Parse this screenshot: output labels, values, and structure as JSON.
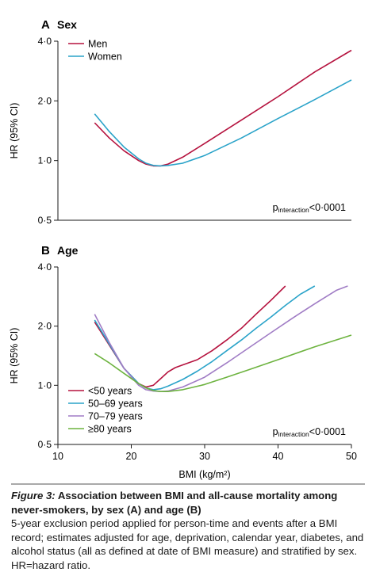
{
  "chart_data": [
    {
      "type": "line",
      "panel_letter": "A",
      "title": "Sex",
      "xlabel": "BMI (kg/m²)",
      "ylabel": "HR (95% CI)",
      "y_scale": "log",
      "ylim": [
        0.5,
        4.0
      ],
      "xlim": [
        10,
        50
      ],
      "y_ticks": [
        "0·5",
        "1·0",
        "2·0",
        "4·0"
      ],
      "y_tick_values": [
        0.5,
        1.0,
        2.0,
        4.0
      ],
      "annotation": {
        "p": "p",
        "sub": "interaction",
        "rest": "<0·0001"
      },
      "legend_position": "top-left",
      "series": [
        {
          "name": "Men",
          "color": "#b5123e",
          "x": [
            15,
            17,
            19,
            21,
            22,
            23,
            24,
            25,
            27,
            30,
            35,
            40,
            45,
            50
          ],
          "y": [
            1.55,
            1.3,
            1.12,
            1.0,
            0.96,
            0.94,
            0.94,
            0.96,
            1.04,
            1.22,
            1.6,
            2.1,
            2.8,
            3.6
          ]
        },
        {
          "name": "Women",
          "color": "#2aa3c9",
          "x": [
            15,
            17,
            19,
            21,
            22,
            23,
            24,
            25,
            27,
            30,
            35,
            40,
            45,
            50
          ],
          "y": [
            1.72,
            1.4,
            1.17,
            1.02,
            0.97,
            0.945,
            0.94,
            0.945,
            0.97,
            1.06,
            1.3,
            1.63,
            2.03,
            2.55
          ]
        }
      ]
    },
    {
      "type": "line",
      "panel_letter": "B",
      "title": "Age",
      "xlabel": "BMI (kg/m²)",
      "ylabel": "HR (95% CI)",
      "y_scale": "log",
      "ylim": [
        0.5,
        4.0
      ],
      "xlim": [
        10,
        50
      ],
      "x_ticks": [
        "10",
        "20",
        "30",
        "40",
        "50"
      ],
      "x_tick_values": [
        10,
        20,
        30,
        40,
        50
      ],
      "y_ticks": [
        "0·5",
        "1·0",
        "2·0",
        "4·0"
      ],
      "y_tick_values": [
        0.5,
        1.0,
        2.0,
        4.0
      ],
      "annotation": {
        "p": "p",
        "sub": "interaction",
        "rest": "<0·0001"
      },
      "legend_position": "bottom-left",
      "series": [
        {
          "name": "<50 years",
          "color": "#b5123e",
          "x": [
            15,
            17,
            19,
            21,
            22,
            23,
            24,
            25,
            26,
            27,
            29,
            31,
            33,
            35,
            37,
            39,
            41
          ],
          "y": [
            2.1,
            1.6,
            1.22,
            1.02,
            0.98,
            1.0,
            1.08,
            1.17,
            1.23,
            1.27,
            1.35,
            1.5,
            1.7,
            1.95,
            2.3,
            2.7,
            3.2
          ]
        },
        {
          "name": "50–69 years",
          "color": "#2aa3c9",
          "x": [
            15,
            17,
            19,
            21,
            22,
            23,
            24,
            25,
            27,
            29,
            31,
            33,
            35,
            37,
            39,
            41,
            43,
            45
          ],
          "y": [
            2.15,
            1.62,
            1.22,
            1.02,
            0.97,
            0.95,
            0.96,
            0.99,
            1.07,
            1.18,
            1.32,
            1.5,
            1.7,
            1.95,
            2.22,
            2.55,
            2.9,
            3.2
          ]
        },
        {
          "name": "70–79 years",
          "color": "#a07cc5",
          "x": [
            15,
            17,
            19,
            21,
            22,
            23,
            24,
            25,
            27,
            30,
            33,
            36,
            39,
            42,
            45,
            48,
            49.5
          ],
          "y": [
            2.3,
            1.65,
            1.22,
            1.0,
            0.95,
            0.935,
            0.93,
            0.935,
            0.98,
            1.1,
            1.3,
            1.55,
            1.85,
            2.2,
            2.6,
            3.05,
            3.2
          ]
        },
        {
          "name": "≥80 years",
          "color": "#6db33f",
          "x": [
            15,
            17,
            19,
            21,
            22,
            23,
            24,
            25,
            27,
            30,
            33,
            36,
            40,
            45,
            50
          ],
          "y": [
            1.45,
            1.3,
            1.15,
            1.02,
            0.97,
            0.94,
            0.93,
            0.93,
            0.95,
            1.01,
            1.1,
            1.2,
            1.35,
            1.57,
            1.8
          ]
        }
      ]
    }
  ],
  "caption": {
    "figure_label": "Figure 3:",
    "title": " Association between BMI and all-cause mortality among never-smokers, by sex (A) and age (B)",
    "body": "5-year exclusion period applied for person-time and events after a BMI record; estimates adjusted for age, deprivation, calendar year, diabetes, and alcohol status (all as defined at date of BMI measure) and stratified by sex. HR=hazard ratio."
  }
}
